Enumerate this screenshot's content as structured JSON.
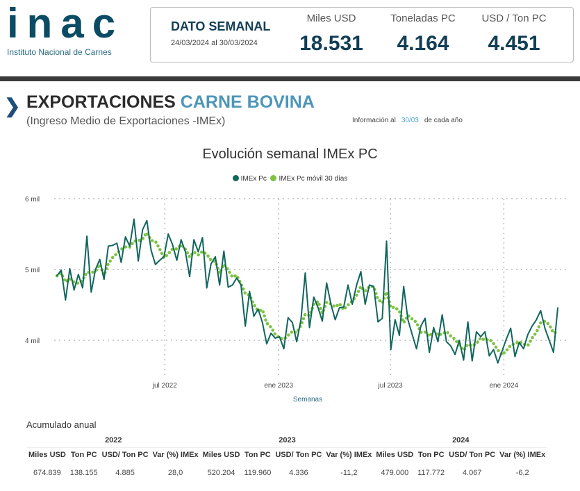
{
  "logo": {
    "text": "inac",
    "subtitle": "Instituto Nacional de Carnes"
  },
  "weekly": {
    "title": "DATO SEMANAL",
    "date_range": "24/03/2024 al 30/03/2024",
    "kpis": [
      {
        "label": "Miles USD",
        "value": "18.531"
      },
      {
        "label": "Toneladas PC",
        "value": "4.164"
      },
      {
        "label": "USD / Ton PC",
        "value": "4.451"
      }
    ]
  },
  "heading": {
    "main": "EXPORTACIONES",
    "accent": "CARNE BOVINA",
    "subtitle": "(Ingreso Medio de Exportaciones -IMEx)",
    "info_prefix": "Información al",
    "info_date": "30/03",
    "info_suffix": "de cada año"
  },
  "colors": {
    "series": "#11665e",
    "moving": "#7dc242",
    "brand": "#0b4b63"
  },
  "chart_data": {
    "type": "line",
    "title": "Evolución semanal IMEx PC",
    "xlabel": "Semanas",
    "ylabel": "",
    "ylim": [
      3.5,
      6.1
    ],
    "yticks": [
      {
        "v": 4,
        "label": "4 mil"
      },
      {
        "v": 5,
        "label": "5 mil"
      },
      {
        "v": 6,
        "label": "6 mil"
      }
    ],
    "xticks": [
      {
        "i": 25.2,
        "label": "jul 2022"
      },
      {
        "i": 51.8,
        "label": "ene 2023"
      },
      {
        "i": 77.9,
        "label": "jul 2023"
      },
      {
        "i": 104.4,
        "label": "ene 2024"
      }
    ],
    "legend": "top-center",
    "grid": true,
    "moving_window_weeks": 4,
    "series": [
      {
        "name": "IMEx Pc",
        "unit": "miles USD/ton",
        "values": [
          4.91,
          4.99,
          4.57,
          5.01,
          4.71,
          4.93,
          4.74,
          5.47,
          4.68,
          5.0,
          5.14,
          4.86,
          5.33,
          5.34,
          5.37,
          5.1,
          5.46,
          5.33,
          5.71,
          5.12,
          5.56,
          5.69,
          5.27,
          5.07,
          5.13,
          5.18,
          5.5,
          5.35,
          5.13,
          5.42,
          5.25,
          4.9,
          5.42,
          5.25,
          5.45,
          4.74,
          5.08,
          5.18,
          4.78,
          5.26,
          4.75,
          4.78,
          4.88,
          4.78,
          4.2,
          4.69,
          4.34,
          4.44,
          4.25,
          3.95,
          4.1,
          4.03,
          4.05,
          3.88,
          4.32,
          4.25,
          3.98,
          4.29,
          4.95,
          4.18,
          4.61,
          4.46,
          4.27,
          4.81,
          4.51,
          4.29,
          4.46,
          4.47,
          4.78,
          4.51,
          4.78,
          4.97,
          4.51,
          4.78,
          4.76,
          4.26,
          4.31,
          5.4,
          3.87,
          4.29,
          4.07,
          4.76,
          4.29,
          4.08,
          3.88,
          4.2,
          4.31,
          3.83,
          4.18,
          3.98,
          4.36,
          3.98,
          3.92,
          3.8,
          4.0,
          3.72,
          4.26,
          3.71,
          4.12,
          4.05,
          4.12,
          3.78,
          3.87,
          3.68,
          3.85,
          4.02,
          4.17,
          3.77,
          3.97,
          3.88,
          4.08,
          4.2,
          4.29,
          4.42,
          4.17,
          4.0,
          3.83,
          4.46
        ]
      },
      {
        "name": "IMEx Pc móvil 30 días",
        "derived": "rolling mean of IMEx Pc"
      }
    ]
  },
  "annual": {
    "title": "Acumulado anual",
    "years": [
      "2022",
      "2023",
      "2024"
    ],
    "columns": [
      "Miles USD",
      "Ton PC",
      "USD/ Ton PC",
      "Var (%) IMEx"
    ],
    "rows": [
      [
        "674.839",
        "138.155",
        "4.885",
        "28,0"
      ],
      [
        "520.204",
        "119.960",
        "4.336",
        "-11,2"
      ],
      [
        "479.000",
        "117.772",
        "4.067",
        "-6,2"
      ]
    ]
  }
}
